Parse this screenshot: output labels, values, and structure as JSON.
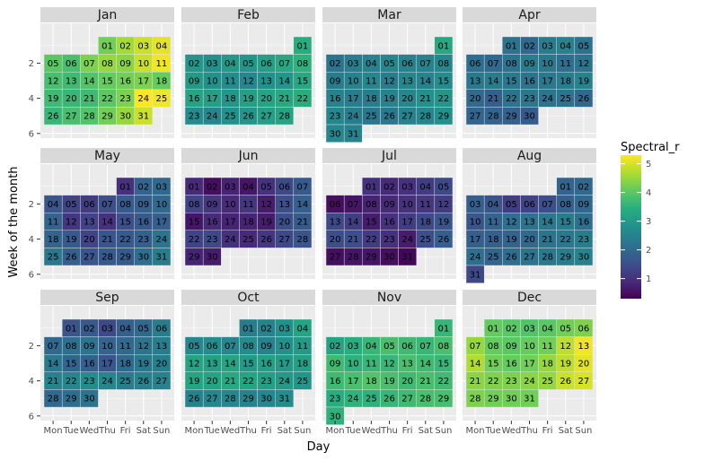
{
  "chart_data": {
    "type": "heatmap",
    "title": "",
    "xlabel": "Day",
    "ylabel": "Week of the month",
    "x_ticks": [
      "Mon",
      "Tue",
      "Wed",
      "Thu",
      "Fri",
      "Sat",
      "Sun"
    ],
    "y_ticks": [
      "2",
      "4",
      "6"
    ],
    "y_tick_values": [
      2,
      4,
      6
    ],
    "y_range": [
      0.5,
      6.5
    ],
    "legend": {
      "title": "Spectral_r",
      "ticks": [
        "1",
        "2",
        "3",
        "4",
        "5"
      ],
      "tick_values": [
        1,
        2,
        3,
        4,
        5
      ],
      "range": [
        0.3,
        5.3
      ],
      "placement": "right",
      "colors": [
        "#440154",
        "#472d7b",
        "#3b528b",
        "#2c728e",
        "#21918c",
        "#28ae80",
        "#5ec962",
        "#addc30",
        "#fde725"
      ]
    },
    "panels": [
      {
        "month": "Jan",
        "first_weekday": 3,
        "values": [
          4.2,
          4.6,
          4.9,
          5.1,
          4.0,
          3.8,
          4.3,
          4.5,
          4.4,
          4.9,
          5.2,
          3.8,
          3.7,
          3.9,
          4.1,
          4.2,
          4.3,
          4.1,
          3.7,
          3.6,
          3.7,
          4.0,
          4.3,
          5.3,
          5.2,
          3.6,
          3.8,
          3.9,
          4.2,
          4.5,
          4.9
        ]
      },
      {
        "month": "Feb",
        "first_weekday": 6,
        "values": [
          3.4,
          2.9,
          2.8,
          3.0,
          2.9,
          3.1,
          3.3,
          3.5,
          3.0,
          2.8,
          2.7,
          2.6,
          2.8,
          2.9,
          3.3,
          3.2,
          3.1,
          2.9,
          3.1,
          3.2,
          3.3,
          3.4,
          2.7,
          2.6,
          2.8,
          2.9,
          3.1,
          3.2
        ]
      },
      {
        "month": "Mar",
        "first_weekday": 6,
        "values": [
          3.3,
          2.2,
          2.4,
          2.5,
          2.6,
          2.5,
          2.5,
          2.6,
          2.4,
          2.5,
          2.6,
          2.4,
          2.6,
          2.5,
          2.7,
          2.5,
          2.4,
          2.4,
          2.5,
          2.6,
          2.8,
          2.9,
          2.6,
          2.4,
          2.3,
          2.3,
          2.5,
          2.6,
          2.8,
          2.6,
          2.5
        ]
      },
      {
        "month": "Apr",
        "first_weekday": 2,
        "values": [
          2.2,
          2.0,
          2.4,
          2.5,
          2.2,
          2.1,
          2.0,
          2.2,
          2.4,
          2.3,
          2.1,
          2.2,
          2.3,
          2.4,
          2.3,
          2.2,
          2.3,
          2.4,
          2.5,
          2.0,
          1.8,
          2.2,
          2.3,
          2.2,
          2.2,
          2.0,
          1.9,
          1.9,
          1.8,
          1.7
        ]
      },
      {
        "month": "May",
        "first_weekday": 4,
        "values": [
          1.0,
          1.9,
          2.0,
          1.6,
          1.3,
          1.2,
          1.5,
          1.7,
          1.8,
          2.0,
          1.9,
          1.1,
          1.3,
          1.0,
          1.5,
          1.7,
          1.8,
          1.9,
          1.7,
          1.3,
          1.6,
          1.7,
          1.8,
          2.2,
          2.3,
          1.8,
          1.6,
          1.7,
          1.7,
          2.1,
          2.4
        ]
      },
      {
        "month": "Jun",
        "first_weekday": 0,
        "values": [
          0.9,
          0.5,
          0.8,
          0.6,
          1.0,
          1.4,
          1.7,
          1.3,
          1.1,
          0.9,
          1.1,
          0.7,
          1.5,
          1.8,
          0.6,
          0.9,
          0.8,
          0.8,
          0.7,
          1.5,
          1.7,
          1.3,
          1.4,
          1.0,
          0.9,
          1.1,
          1.4,
          1.6,
          0.8,
          0.7
        ]
      },
      {
        "month": "Jul",
        "first_weekday": 2,
        "values": [
          1.0,
          0.9,
          1.0,
          1.2,
          1.4,
          0.5,
          0.6,
          0.8,
          0.9,
          1.0,
          1.1,
          1.2,
          1.4,
          1.2,
          0.7,
          1.0,
          1.2,
          1.4,
          1.6,
          1.5,
          1.5,
          1.2,
          1.0,
          0.7,
          1.5,
          1.8,
          0.5,
          0.6,
          0.6,
          0.5,
          0.4
        ]
      },
      {
        "month": "Aug",
        "first_weekday": 5,
        "values": [
          1.9,
          2.0,
          1.8,
          1.6,
          1.2,
          1.3,
          1.5,
          1.8,
          2.0,
          1.6,
          1.9,
          2.1,
          2.2,
          2.3,
          2.4,
          2.1,
          1.8,
          1.8,
          1.9,
          2.0,
          2.2,
          2.3,
          2.4,
          2.1,
          1.9,
          2.1,
          2.2,
          2.3,
          2.4,
          2.5,
          1.4
        ]
      },
      {
        "month": "Sep",
        "first_weekday": 1,
        "values": [
          1.6,
          1.7,
          1.4,
          1.8,
          2.0,
          2.4,
          2.0,
          2.1,
          2.2,
          1.9,
          2.0,
          2.2,
          2.4,
          2.3,
          1.9,
          1.8,
          1.6,
          2.0,
          2.3,
          2.4,
          2.5,
          2.6,
          2.7,
          2.6,
          2.4,
          2.5,
          2.5,
          2.0,
          2.1,
          2.2
        ]
      },
      {
        "month": "Oct",
        "first_weekday": 3,
        "values": [
          2.4,
          2.5,
          2.8,
          3.2,
          2.6,
          2.7,
          2.6,
          2.7,
          2.5,
          2.8,
          3.0,
          3.2,
          3.1,
          3.2,
          3.0,
          3.1,
          3.0,
          3.1,
          3.2,
          3.2,
          3.3,
          3.2,
          3.1,
          3.0,
          2.9,
          2.5,
          2.6,
          2.6,
          2.5,
          2.6,
          2.7
        ]
      },
      {
        "month": "Nov",
        "first_weekday": 6,
        "values": [
          3.6,
          3.2,
          3.4,
          3.6,
          3.8,
          3.7,
          3.6,
          3.8,
          3.7,
          3.5,
          3.6,
          3.6,
          3.8,
          3.7,
          3.6,
          3.7,
          3.8,
          3.9,
          3.8,
          3.7,
          3.8,
          3.7,
          3.4,
          3.5,
          3.5,
          3.6,
          3.7,
          3.8,
          3.8,
          3.5
        ]
      },
      {
        "month": "Dec",
        "first_weekday": 1,
        "values": [
          4.1,
          4.0,
          3.9,
          4.0,
          4.2,
          4.3,
          4.5,
          4.1,
          4.0,
          4.1,
          4.2,
          4.8,
          5.2,
          4.7,
          4.2,
          4.1,
          4.2,
          4.5,
          4.8,
          5.1,
          4.4,
          4.3,
          4.3,
          4.4,
          4.5,
          4.9,
          5.0,
          4.3,
          4.2,
          4.2,
          4.2
        ]
      }
    ]
  }
}
